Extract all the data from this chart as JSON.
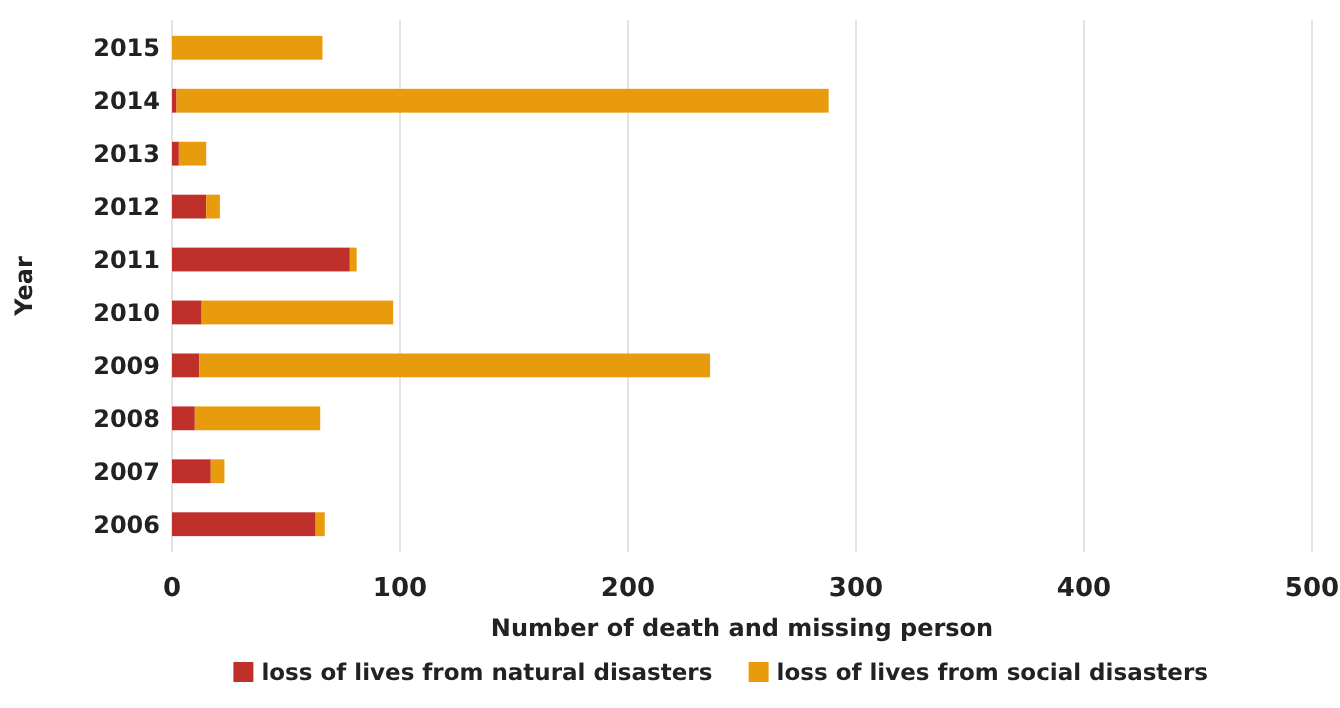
{
  "chart_data": {
    "type": "bar",
    "orientation": "horizontal",
    "stacked": true,
    "ylabel": "Year",
    "xlabel": "Number of death and missing person",
    "categories": [
      "2015",
      "2014",
      "2013",
      "2012",
      "2011",
      "2010",
      "2009",
      "2008",
      "2007",
      "2006"
    ],
    "series": [
      {
        "name": "loss of lives from natural disasters",
        "color": "#c0302a",
        "values": [
          0,
          2,
          3,
          15,
          78,
          13,
          12,
          10,
          17,
          63
        ]
      },
      {
        "name": "loss of lives from social disasters",
        "color": "#e89b0c",
        "values": [
          66,
          286,
          12,
          6,
          3,
          84,
          224,
          55,
          6,
          4
        ]
      }
    ],
    "xlim": [
      0,
      500
    ],
    "xticks": [
      0,
      100,
      200,
      300,
      400,
      500
    ],
    "grid": "x",
    "legend": "bottom"
  }
}
